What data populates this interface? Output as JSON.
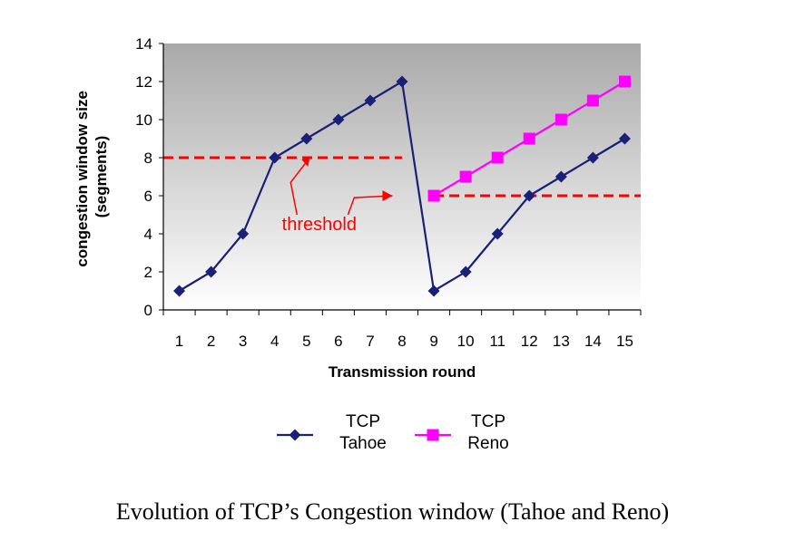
{
  "caption": "Evolution of TCP’s Congestion  window (Tahoe and Reno)",
  "chart_data": {
    "type": "line",
    "title": "",
    "xlabel": "Transmission round",
    "ylabel_line1": "congestion window size",
    "ylabel_line2": "(segments)",
    "x": [
      1,
      2,
      3,
      4,
      5,
      6,
      7,
      8,
      9,
      10,
      11,
      12,
      13,
      14,
      15
    ],
    "ylim": [
      0,
      14
    ],
    "yticks": [
      0,
      2,
      4,
      6,
      8,
      10,
      12,
      14
    ],
    "grid": false,
    "legend_position": "bottom",
    "series": [
      {
        "name_line1": "TCP",
        "name_line2": "Tahoe",
        "color": "#1a1f78",
        "marker": "diamond",
        "x": [
          1,
          2,
          3,
          4,
          5,
          6,
          7,
          8,
          9,
          10,
          11,
          12,
          13,
          14,
          15
        ],
        "values": [
          1,
          2,
          4,
          8,
          9,
          10,
          11,
          12,
          1,
          2,
          4,
          6,
          7,
          8,
          9
        ]
      },
      {
        "name_line1": "TCP",
        "name_line2": "Reno",
        "color": "#ff00ff",
        "marker": "square",
        "x": [
          9,
          10,
          11,
          12,
          13,
          14,
          15
        ],
        "values": [
          6,
          7,
          8,
          9,
          10,
          11,
          12
        ]
      }
    ],
    "thresholds": [
      {
        "value": 8,
        "x_from": 0.5,
        "x_to": 8.0
      },
      {
        "value": 6,
        "x_from": 9.0,
        "x_to": 15.5
      }
    ],
    "annotation": {
      "text": "threshold",
      "color": "#ff0000"
    },
    "colors": {
      "plot_bg_top": "#a9a9a9",
      "plot_bg_bottom": "#ffffff",
      "threshold": "#ff0000"
    }
  }
}
